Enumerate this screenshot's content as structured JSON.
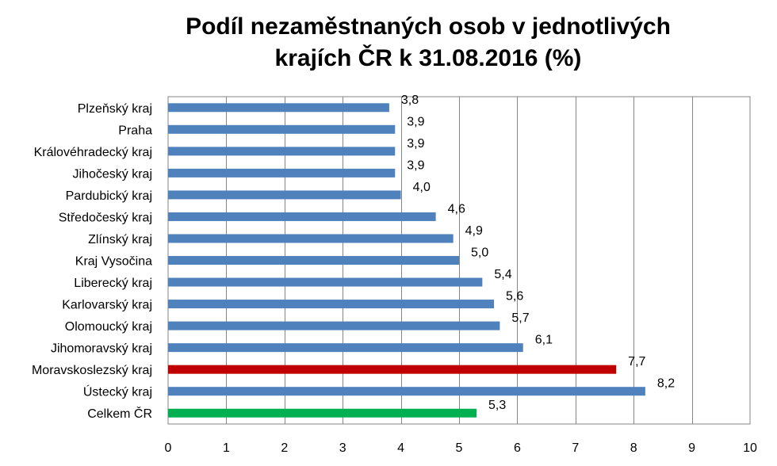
{
  "chart_data": {
    "type": "bar",
    "orientation": "horizontal",
    "title_lines": [
      "Podíl nezaměstnaných osob v jednotlivých",
      "krajích ČR k 31.08.2016 (%)"
    ],
    "categories": [
      "Plzeňský kraj",
      "Praha",
      "Královéhradecký kraj",
      "Jihočeský kraj",
      "Pardubický kraj",
      "Středočeský kraj",
      "Zlínský kraj",
      "Kraj Vysočina",
      "Liberecký kraj",
      "Karlovarský kraj",
      "Olomoucký kraj",
      "Jihomoravský kraj",
      "Moravskoslezský kraj",
      "Ústecký kraj",
      "Celkem ČR"
    ],
    "values": [
      3.8,
      3.9,
      3.9,
      3.9,
      4.0,
      4.6,
      4.9,
      5.0,
      5.4,
      5.6,
      5.7,
      6.1,
      7.7,
      8.2,
      5.3
    ],
    "data_labels": [
      "3,8",
      "3,9",
      "3,9",
      "3,9",
      "4,0",
      "4,6",
      "4,9",
      "5,0",
      "5,4",
      "5,6",
      "5,7",
      "6,1",
      "7,7",
      "8,2",
      "5,3"
    ],
    "bar_colors": [
      "#4f81bd",
      "#4f81bd",
      "#4f81bd",
      "#4f81bd",
      "#4f81bd",
      "#4f81bd",
      "#4f81bd",
      "#4f81bd",
      "#4f81bd",
      "#4f81bd",
      "#4f81bd",
      "#4f81bd",
      "#c00000",
      "#4f81bd",
      "#00b050"
    ],
    "xlim": [
      0,
      10
    ],
    "x_ticks": [
      "0",
      "1",
      "2",
      "3",
      "4",
      "5",
      "6",
      "7",
      "8",
      "9",
      "10"
    ],
    "grid": "vertical",
    "legend": "none"
  }
}
